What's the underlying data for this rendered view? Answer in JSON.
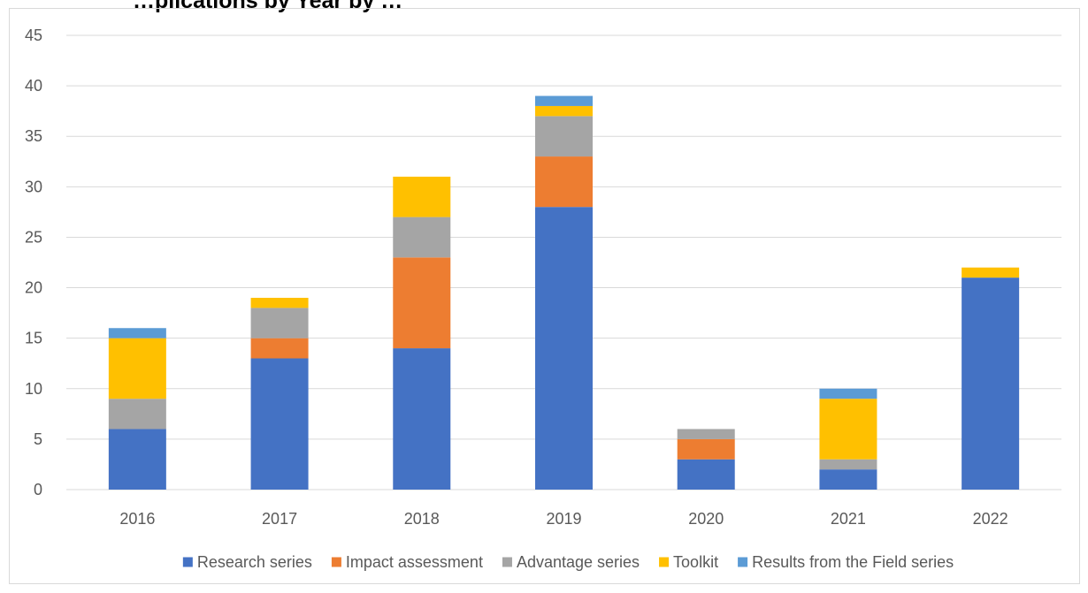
{
  "chart_data": {
    "type": "bar",
    "stacked": true,
    "title": "…plications by Year by …",
    "categories": [
      "2016",
      "2017",
      "2018",
      "2019",
      "2020",
      "2021",
      "2022"
    ],
    "series": [
      {
        "name": "Research series",
        "color": "#4472c4",
        "values": [
          6,
          13,
          14,
          28,
          3,
          2,
          21
        ]
      },
      {
        "name": "Impact assessment",
        "color": "#ed7d31",
        "values": [
          0,
          2,
          9,
          5,
          2,
          0,
          0
        ]
      },
      {
        "name": "Advantage series",
        "color": "#a5a5a5",
        "values": [
          3,
          3,
          4,
          4,
          1,
          1,
          0
        ]
      },
      {
        "name": "Toolkit",
        "color": "#ffc000",
        "values": [
          6,
          1,
          4,
          1,
          0,
          6,
          1
        ]
      },
      {
        "name": "Results from the Field series",
        "color": "#5b9bd5",
        "values": [
          1,
          0,
          0,
          1,
          0,
          1,
          0
        ]
      }
    ],
    "yticks": [
      "0",
      "5",
      "10",
      "15",
      "20",
      "25",
      "30",
      "35",
      "40",
      "45"
    ],
    "ylim": [
      0,
      45
    ],
    "grid": true,
    "legend_position": "bottom"
  }
}
